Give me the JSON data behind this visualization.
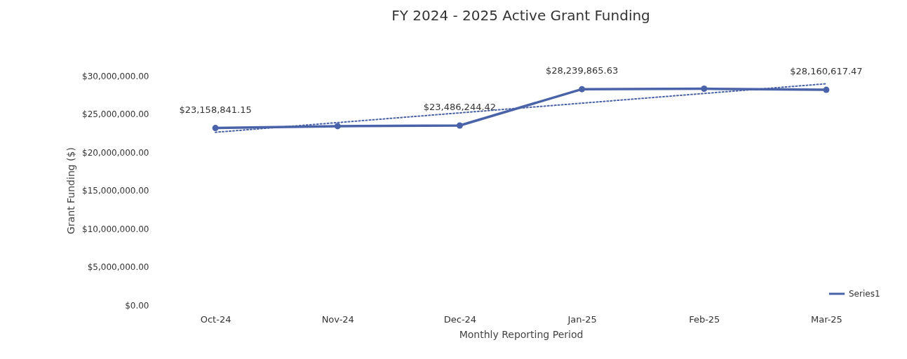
{
  "chart_data": {
    "type": "line",
    "title": "FY 2024 - 2025 Active Grant Funding",
    "xlabel": "Monthly Reporting Period",
    "ylabel": "Grant Funding ($)",
    "categories": [
      "Oct-24",
      "Nov-24",
      "Dec-24",
      "Jan-25",
      "Feb-25",
      "Mar-25"
    ],
    "series": [
      {
        "name": "Series1",
        "color": "#4a63a8",
        "values": [
          23158841.15,
          23400000,
          23486244.42,
          28239865.63,
          28300000,
          28160617.47
        ],
        "value_labels": [
          "$23,158,841.15",
          null,
          "$23,486,244.42",
          "$28,239,865.63",
          null,
          "$28,160,617.47"
        ]
      },
      {
        "type": "line",
        "color": "#4a63a8",
        "line_style": "dotted",
        "marker": "none",
        "x": [
          "Oct-24",
          "Mar-25"
        ],
        "values": [
          22600000,
          28950000
        ]
      }
    ],
    "ylim": [
      0,
      30000000
    ],
    "yticks": [
      {
        "value": 0,
        "label": "$0.00"
      },
      {
        "value": 5000000,
        "label": "$5,000,000.00"
      },
      {
        "value": 10000000,
        "label": "$10,000,000.00"
      },
      {
        "value": 15000000,
        "label": "$15,000,000.00"
      },
      {
        "value": 20000000,
        "label": "$20,000,000.00"
      },
      {
        "value": 25000000,
        "label": "$25,000,000.00"
      },
      {
        "value": 30000000,
        "label": "$30,000,000.00"
      }
    ],
    "grid": false,
    "legend": "bottom right",
    "marker": "circle",
    "line_style": "solid"
  }
}
